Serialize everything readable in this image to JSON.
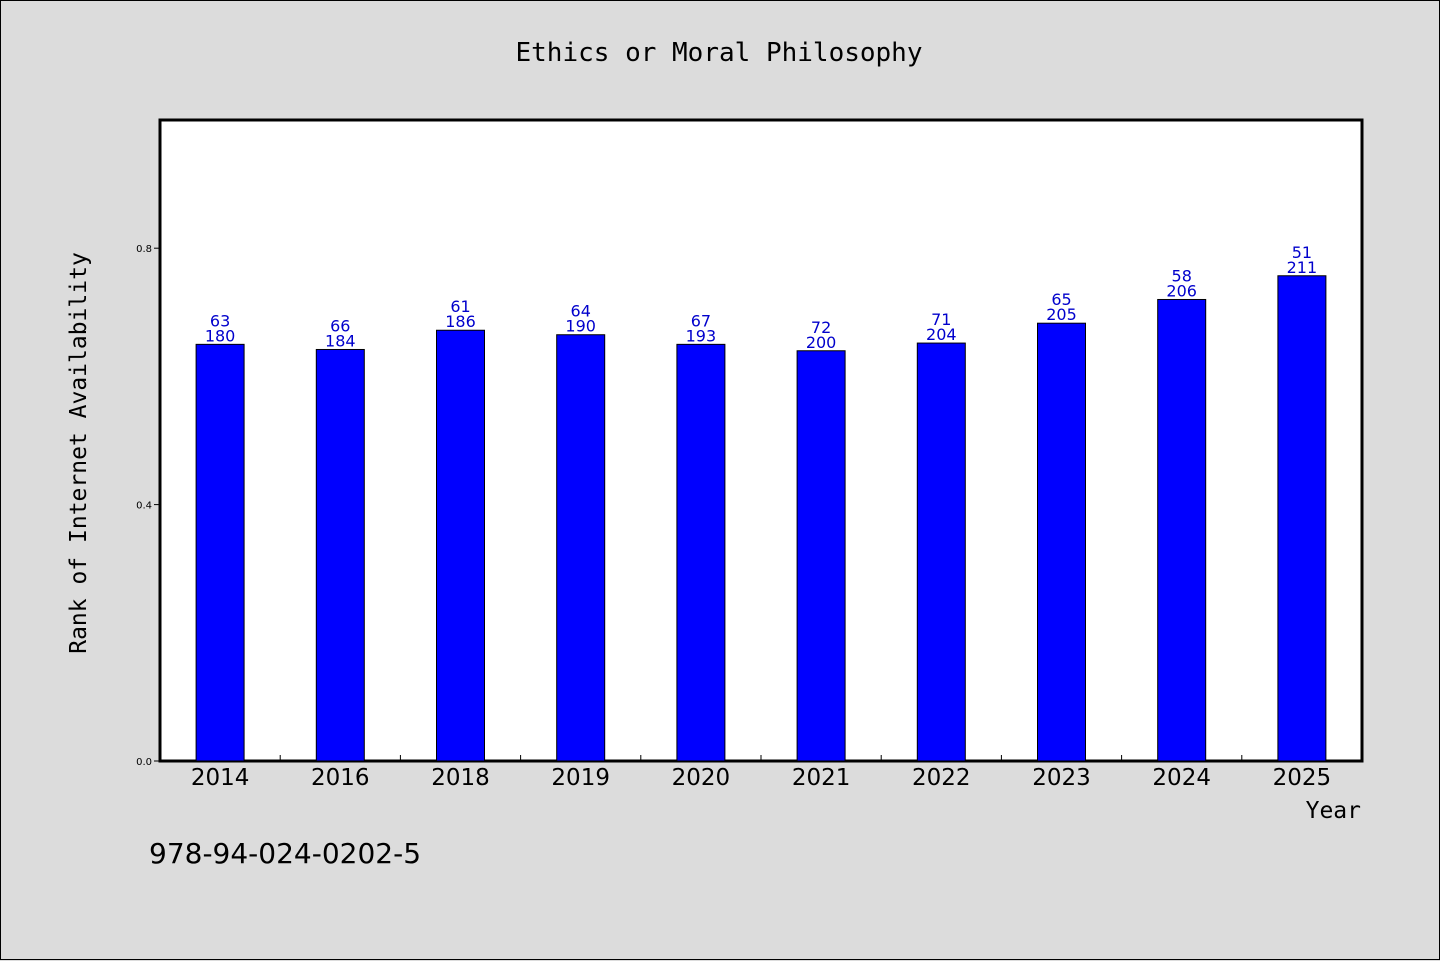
{
  "colors": {
    "bar": "#0000ff",
    "bar_label": "#0000cc",
    "plot_bg": "#ffffff",
    "page_bg": "#dcdcdc"
  },
  "footer": {
    "isbn": "978-94-024-0202-5"
  },
  "chart_data": {
    "type": "bar",
    "title": "Ethics or Moral Philosophy",
    "xlabel": "Year",
    "ylabel": "Rank of Internet Availability",
    "ylim": [
      0,
      1.0
    ],
    "yticks": [
      "0.0",
      "0.4",
      "0.8"
    ],
    "ytick_values": [
      0.0,
      0.4,
      0.8
    ],
    "grid": false,
    "categories": [
      "2014",
      "2016",
      "2018",
      "2019",
      "2020",
      "2021",
      "2022",
      "2023",
      "2024",
      "2025"
    ],
    "values": [
      0.65,
      0.642,
      0.672,
      0.665,
      0.65,
      0.64,
      0.652,
      0.683,
      0.72,
      0.757
    ],
    "label_top": [
      "63",
      "66",
      "61",
      "64",
      "67",
      "72",
      "71",
      "65",
      "58",
      "51"
    ],
    "label_bottom": [
      "180",
      "184",
      "186",
      "190",
      "193",
      "200",
      "204",
      "205",
      "206",
      "211"
    ]
  }
}
